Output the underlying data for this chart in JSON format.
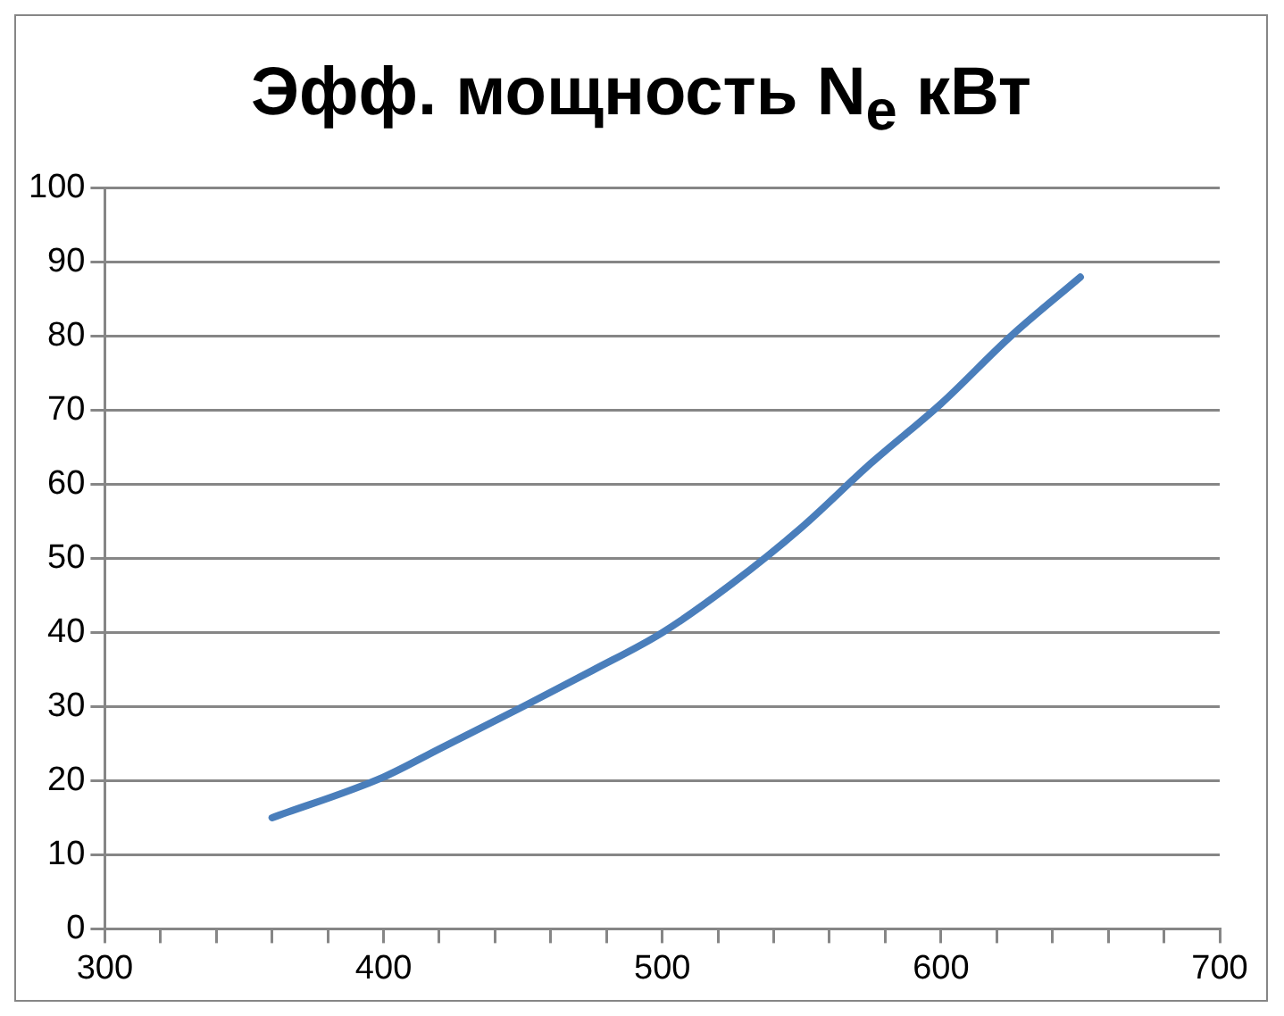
{
  "chart_data": {
    "type": "line",
    "title": "Эфф. мощность N$_{e}$ кВт",
    "x": [
      360,
      400,
      420,
      450,
      475,
      500,
      525,
      550,
      575,
      600,
      625,
      650
    ],
    "series": [
      {
        "color": "#4a7ebb",
        "values": [
          15,
          20.5,
          24.3,
          30,
          34.9,
          40,
          46.6,
          54.2,
          62.9,
          70.9,
          80,
          88
        ]
      }
    ],
    "xlim": [
      300,
      700
    ],
    "xticks": [
      300,
      {
        "value": 320,
        "label": null
      },
      {
        "value": 340,
        "label": null
      },
      {
        "value": 360,
        "label": null
      },
      {
        "value": 380,
        "label": null
      },
      400,
      {
        "value": 420,
        "label": null
      },
      {
        "value": 440,
        "label": null
      },
      {
        "value": 460,
        "label": null
      },
      {
        "value": 480,
        "label": null
      },
      500,
      {
        "value": 520,
        "label": null
      },
      {
        "value": 540,
        "label": null
      },
      {
        "value": 560,
        "label": null
      },
      {
        "value": 580,
        "label": null
      },
      600,
      {
        "value": 620,
        "label": null
      },
      {
        "value": 640,
        "label": null
      },
      {
        "value": 660,
        "label": null
      },
      {
        "value": 680,
        "label": null
      },
      700
    ],
    "ylim": [
      0,
      100
    ],
    "yticks": [
      0,
      10,
      20,
      30,
      40,
      50,
      60,
      70,
      80,
      90,
      100
    ],
    "grid": "y",
    "legend": false,
    "marker": "none",
    "line_style": "solid"
  }
}
